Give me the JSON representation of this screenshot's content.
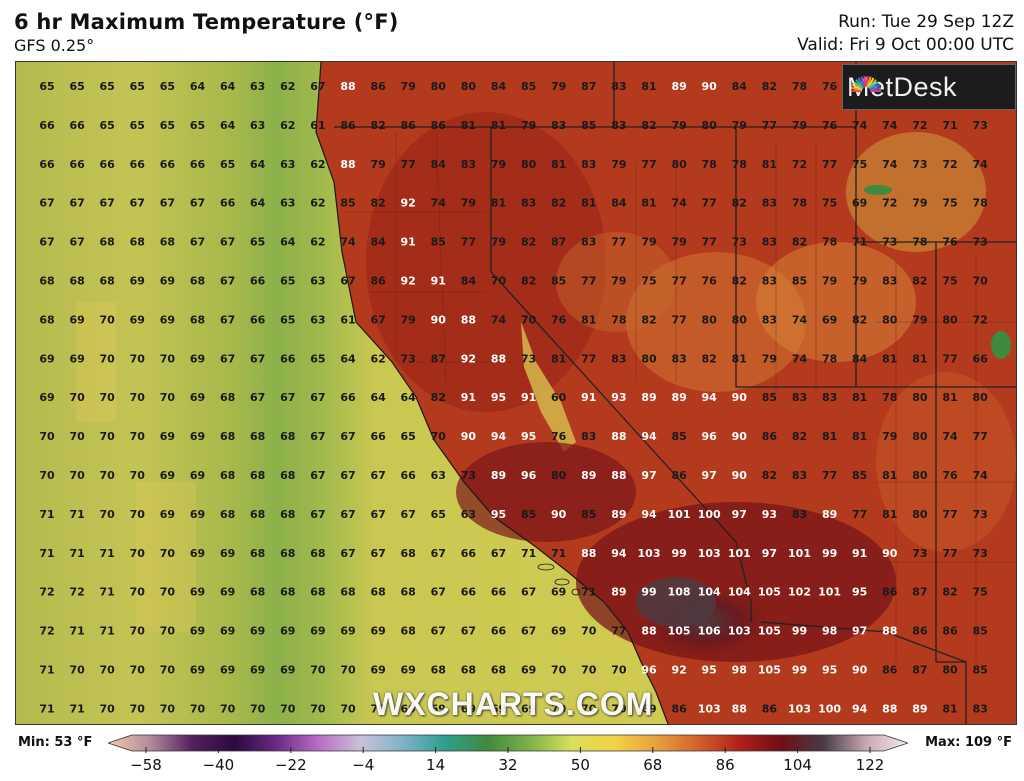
{
  "header": {
    "title": "6 hr Maximum Temperature (°F)",
    "model": "GFS 0.25°",
    "run": "Run: Tue 29 Sep 12Z",
    "valid": "Valid: Fri 9 Oct 00:00 UTC"
  },
  "logo": {
    "text": "MetDesk",
    "icon": "sunburst-icon"
  },
  "watermark": "WXCHARTS.COM",
  "legend": {
    "min_label": "Min: 53 °F",
    "max_label": "Max: 109 °F",
    "ticks": [
      "−58",
      "−40",
      "−22",
      "−4",
      "14",
      "32",
      "50",
      "68",
      "86",
      "104",
      "122"
    ],
    "stops": [
      "#f6c9a6",
      "#b08b9c",
      "#55205e",
      "#2a0a3e",
      "#6a2a86",
      "#b96cc4",
      "#c9c1d8",
      "#7fb3c8",
      "#2f9e8f",
      "#3f8a3c",
      "#7cb04a",
      "#d9df5a",
      "#f1d347",
      "#e9a23e",
      "#d4622a",
      "#b0201a",
      "#6e0f16",
      "#4a3b46",
      "#c7a6b2",
      "#f6ecef"
    ]
  },
  "grid_values": [
    [
      65,
      65,
      65,
      65,
      65,
      64,
      64,
      63,
      62,
      67,
      88,
      86,
      79,
      80,
      80,
      84,
      85,
      79,
      87,
      83,
      81,
      89,
      90,
      84,
      82,
      78,
      76,
      null,
      null,
      null,
      null,
      null
    ],
    [
      66,
      66,
      65,
      65,
      65,
      65,
      64,
      63,
      62,
      61,
      86,
      82,
      86,
      86,
      81,
      81,
      79,
      83,
      85,
      83,
      82,
      79,
      80,
      79,
      77,
      79,
      76,
      74,
      74,
      72,
      71,
      73
    ],
    [
      66,
      66,
      66,
      66,
      66,
      66,
      65,
      64,
      63,
      62,
      88,
      79,
      77,
      84,
      83,
      79,
      80,
      81,
      83,
      79,
      77,
      80,
      78,
      78,
      81,
      72,
      77,
      75,
      74,
      73,
      72,
      74
    ],
    [
      67,
      67,
      67,
      67,
      67,
      67,
      66,
      64,
      63,
      62,
      85,
      82,
      92,
      74,
      79,
      81,
      83,
      82,
      81,
      84,
      81,
      74,
      77,
      82,
      83,
      78,
      75,
      69,
      72,
      79,
      75,
      78
    ],
    [
      67,
      67,
      68,
      68,
      68,
      67,
      67,
      65,
      64,
      62,
      74,
      84,
      91,
      85,
      77,
      79,
      82,
      87,
      83,
      77,
      79,
      79,
      77,
      73,
      83,
      82,
      78,
      71,
      73,
      78,
      76,
      73
    ],
    [
      68,
      68,
      68,
      69,
      69,
      68,
      67,
      66,
      65,
      63,
      67,
      86,
      92,
      91,
      84,
      70,
      82,
      85,
      77,
      79,
      75,
      77,
      76,
      82,
      83,
      85,
      79,
      79,
      83,
      82,
      75,
      70
    ],
    [
      68,
      69,
      70,
      69,
      69,
      68,
      67,
      66,
      65,
      63,
      61,
      67,
      79,
      90,
      88,
      74,
      70,
      76,
      81,
      78,
      82,
      77,
      80,
      80,
      83,
      74,
      69,
      82,
      80,
      79,
      80,
      72
    ],
    [
      69,
      69,
      70,
      70,
      70,
      69,
      67,
      67,
      66,
      65,
      64,
      62,
      73,
      87,
      92,
      88,
      73,
      81,
      77,
      83,
      80,
      83,
      82,
      81,
      79,
      74,
      78,
      84,
      81,
      81,
      77,
      66
    ],
    [
      69,
      70,
      70,
      70,
      70,
      69,
      68,
      67,
      67,
      67,
      66,
      64,
      64,
      82,
      91,
      95,
      91,
      60,
      91,
      93,
      89,
      89,
      94,
      90,
      85,
      83,
      83,
      81,
      78,
      80,
      81,
      80
    ],
    [
      70,
      70,
      70,
      70,
      69,
      69,
      68,
      68,
      68,
      67,
      67,
      66,
      65,
      70,
      90,
      94,
      95,
      76,
      83,
      88,
      94,
      85,
      96,
      90,
      86,
      82,
      81,
      81,
      79,
      80,
      74,
      77
    ],
    [
      70,
      70,
      70,
      70,
      69,
      69,
      68,
      68,
      68,
      67,
      67,
      67,
      66,
      63,
      73,
      89,
      96,
      80,
      89,
      88,
      97,
      86,
      97,
      90,
      82,
      83,
      77,
      85,
      81,
      80,
      76,
      74
    ],
    [
      71,
      71,
      70,
      70,
      69,
      69,
      68,
      68,
      68,
      67,
      67,
      67,
      67,
      65,
      63,
      95,
      85,
      90,
      85,
      89,
      94,
      101,
      100,
      97,
      93,
      83,
      89,
      77,
      81,
      80,
      77,
      73
    ],
    [
      71,
      71,
      71,
      70,
      70,
      69,
      69,
      68,
      68,
      68,
      67,
      67,
      68,
      67,
      66,
      67,
      71,
      71,
      88,
      94,
      103,
      99,
      103,
      101,
      97,
      101,
      99,
      91,
      90,
      73,
      77,
      73
    ],
    [
      72,
      72,
      71,
      70,
      70,
      69,
      69,
      68,
      68,
      68,
      68,
      68,
      68,
      67,
      66,
      66,
      67,
      69,
      71,
      89,
      99,
      108,
      104,
      104,
      105,
      102,
      101,
      95,
      86,
      87,
      82,
      75
    ],
    [
      72,
      71,
      71,
      70,
      70,
      69,
      69,
      69,
      69,
      69,
      69,
      69,
      68,
      67,
      67,
      66,
      67,
      69,
      70,
      77,
      88,
      105,
      106,
      103,
      105,
      99,
      98,
      97,
      88,
      86,
      86,
      85
    ],
    [
      71,
      70,
      70,
      70,
      70,
      69,
      69,
      69,
      69,
      70,
      70,
      69,
      69,
      68,
      68,
      68,
      69,
      70,
      70,
      70,
      96,
      92,
      95,
      98,
      105,
      99,
      95,
      90,
      86,
      87,
      80,
      85
    ],
    [
      71,
      71,
      70,
      70,
      70,
      70,
      70,
      70,
      70,
      70,
      70,
      70,
      69,
      69,
      69,
      69,
      69,
      70,
      70,
      70,
      69,
      86,
      103,
      88,
      86,
      103,
      100,
      94,
      88,
      89,
      81,
      83
    ]
  ]
}
